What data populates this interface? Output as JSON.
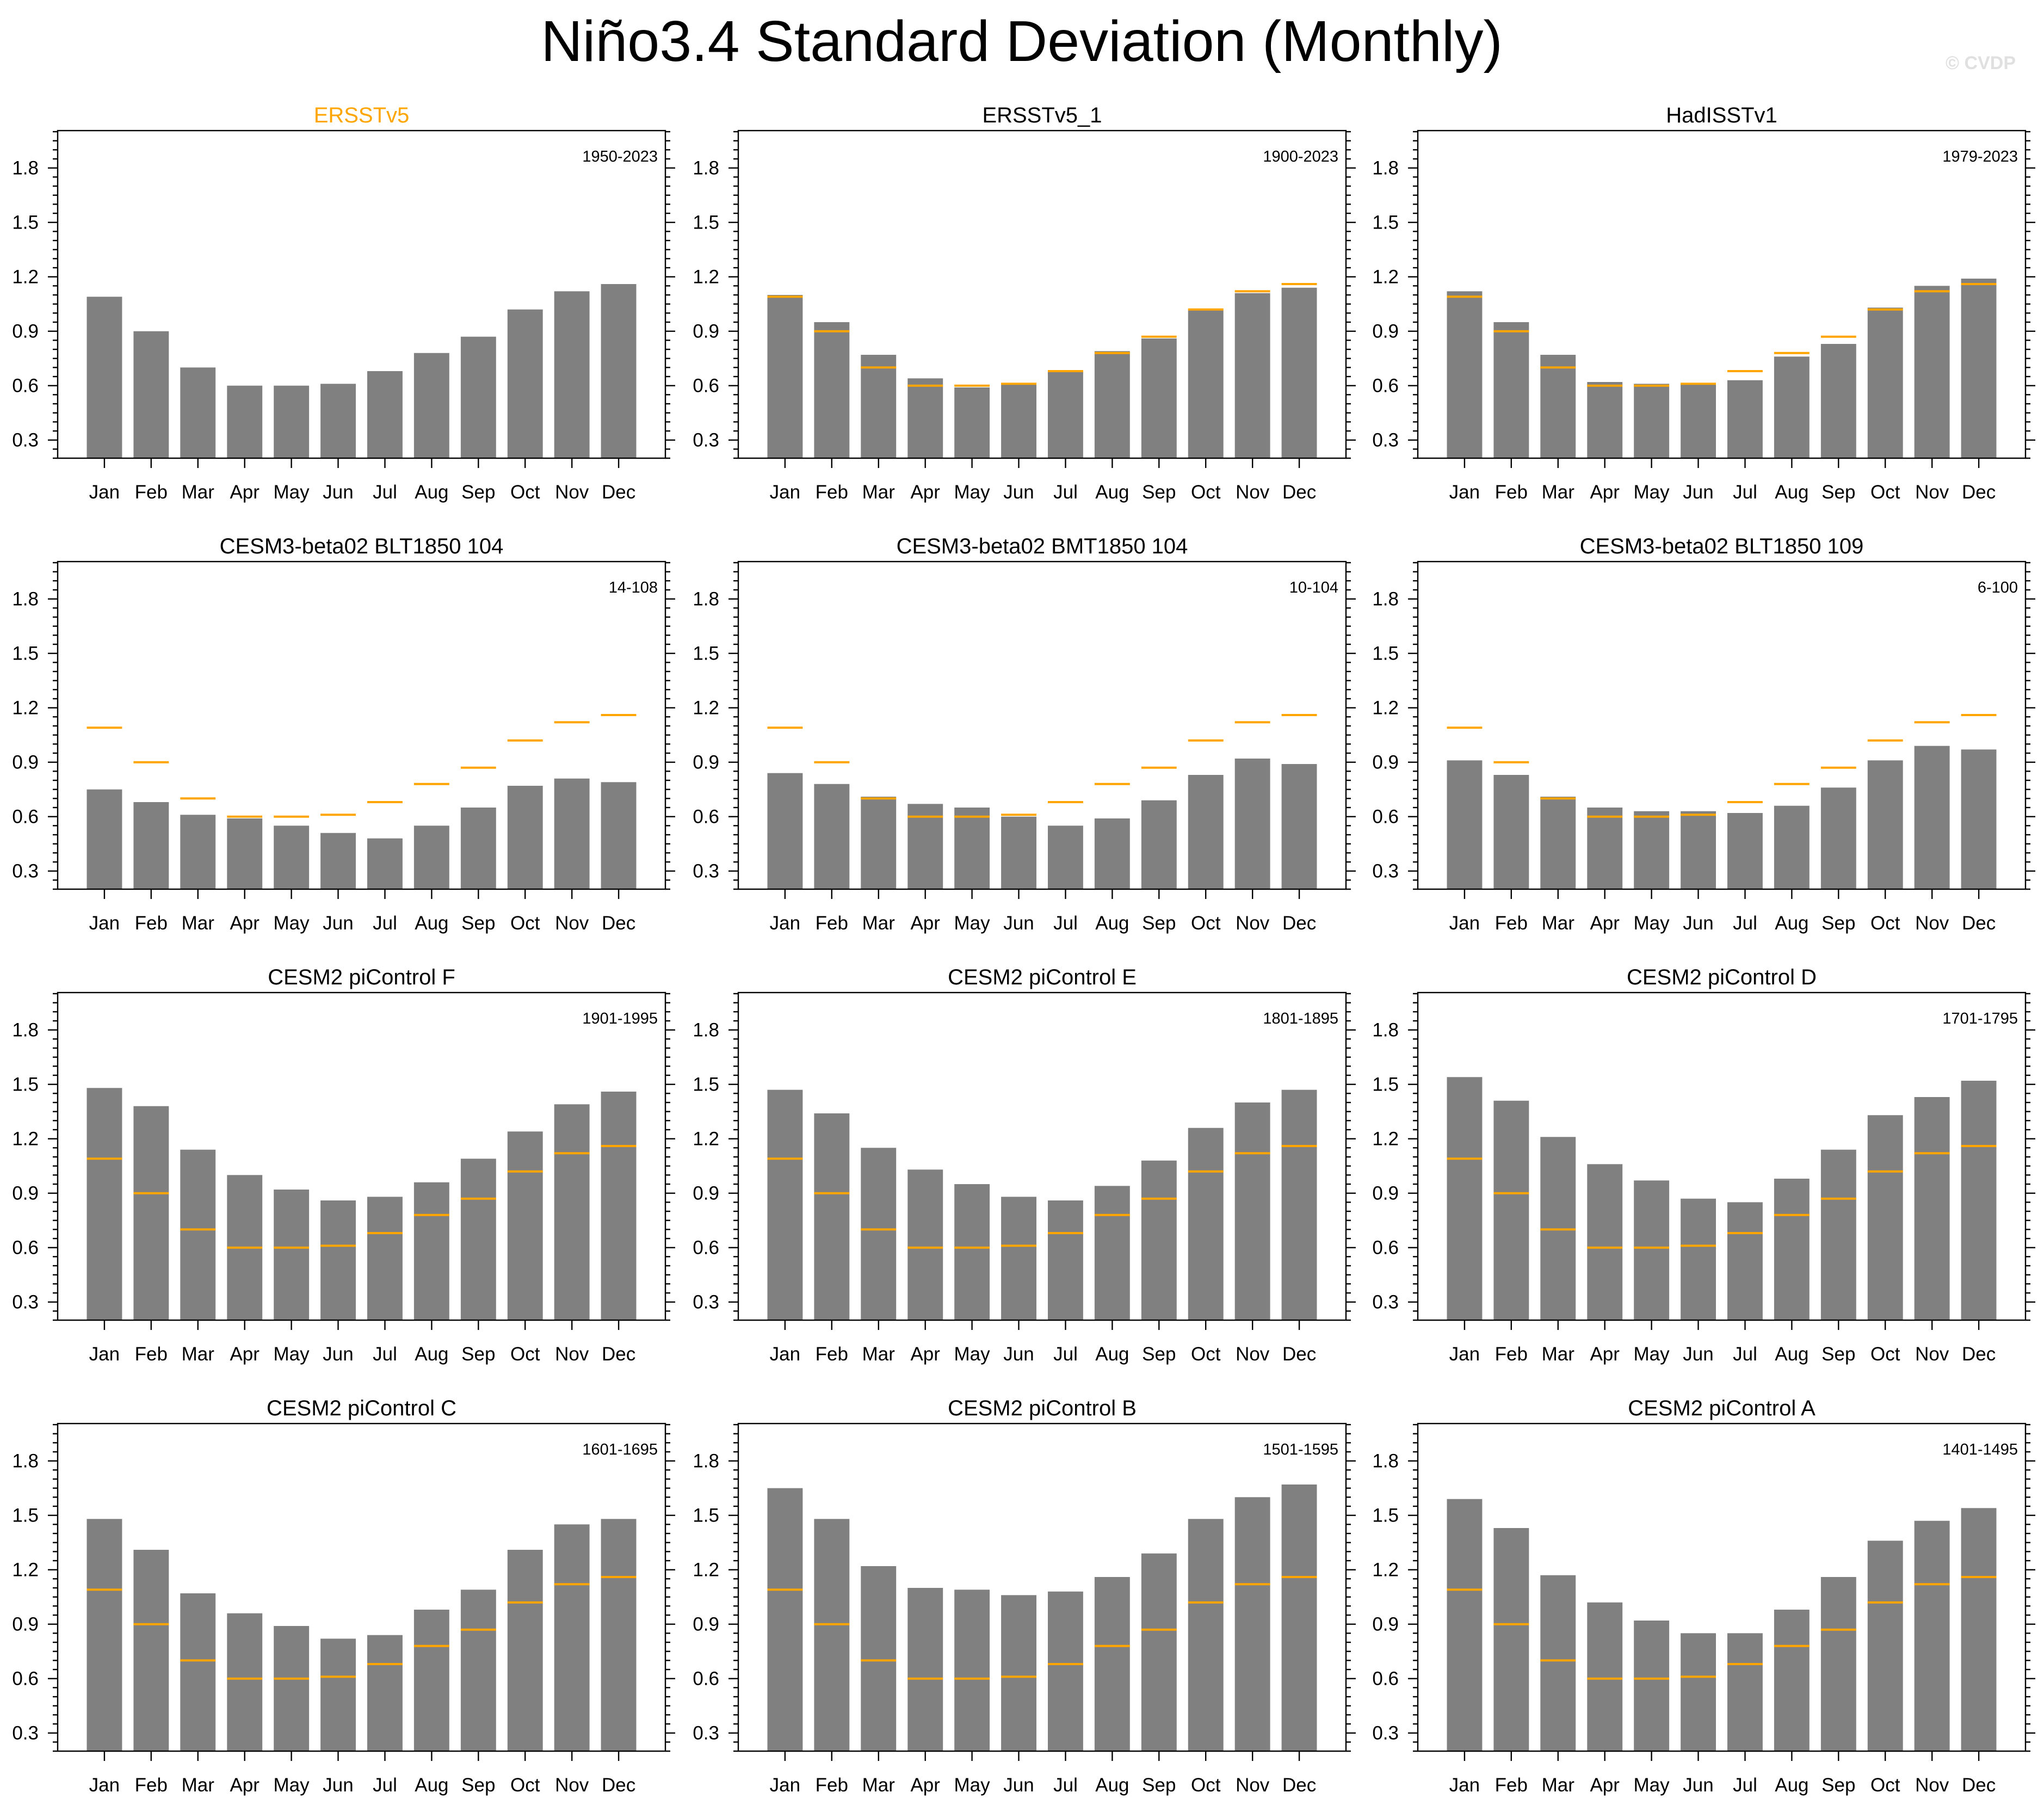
{
  "title": "Niño3.4 Standard Deviation (Monthly)",
  "watermark": "© CVDP",
  "colors": {
    "bar": "#808080",
    "reference": "#ffa500",
    "reference_title": "#ffa500"
  },
  "chart_data": [
    {
      "type": "bar",
      "title": "ERSSTv5",
      "period": "1950-2023",
      "highlight_title": true,
      "categories": [
        "Jan",
        "Feb",
        "Mar",
        "Apr",
        "May",
        "Jun",
        "Jul",
        "Aug",
        "Sep",
        "Oct",
        "Nov",
        "Dec"
      ],
      "values": [
        1.09,
        0.9,
        0.7,
        0.6,
        0.6,
        0.61,
        0.68,
        0.78,
        0.87,
        1.02,
        1.12,
        1.16
      ],
      "reference": null,
      "ylim": [
        0.2,
        2.0
      ],
      "yticks": [
        "0.3",
        "0.6",
        "0.9",
        "1.2",
        "1.5",
        "1.8"
      ],
      "xlabel": "",
      "ylabel": ""
    },
    {
      "type": "bar",
      "title": "ERSSTv5_1",
      "period": "1900-2023",
      "highlight_title": false,
      "categories": [
        "Jan",
        "Feb",
        "Mar",
        "Apr",
        "May",
        "Jun",
        "Jul",
        "Aug",
        "Sep",
        "Oct",
        "Nov",
        "Dec"
      ],
      "values": [
        1.1,
        0.95,
        0.77,
        0.64,
        0.59,
        0.61,
        0.68,
        0.79,
        0.86,
        1.02,
        1.11,
        1.14
      ],
      "reference": [
        1.09,
        0.9,
        0.7,
        0.6,
        0.6,
        0.61,
        0.68,
        0.78,
        0.87,
        1.02,
        1.12,
        1.16
      ],
      "ylim": [
        0.2,
        2.0
      ],
      "yticks": [
        "0.3",
        "0.6",
        "0.9",
        "1.2",
        "1.5",
        "1.8"
      ],
      "xlabel": "",
      "ylabel": ""
    },
    {
      "type": "bar",
      "title": "HadISSTv1",
      "period": "1979-2023",
      "highlight_title": false,
      "categories": [
        "Jan",
        "Feb",
        "Mar",
        "Apr",
        "May",
        "Jun",
        "Jul",
        "Aug",
        "Sep",
        "Oct",
        "Nov",
        "Dec"
      ],
      "values": [
        1.12,
        0.95,
        0.77,
        0.62,
        0.61,
        0.61,
        0.63,
        0.76,
        0.83,
        1.03,
        1.15,
        1.19
      ],
      "reference": [
        1.09,
        0.9,
        0.7,
        0.6,
        0.6,
        0.61,
        0.68,
        0.78,
        0.87,
        1.02,
        1.12,
        1.16
      ],
      "ylim": [
        0.2,
        2.0
      ],
      "yticks": [
        "0.3",
        "0.6",
        "0.9",
        "1.2",
        "1.5",
        "1.8"
      ],
      "xlabel": "",
      "ylabel": ""
    },
    {
      "type": "bar",
      "title": "CESM3-beta02 BLT1850 104",
      "period": "14-108",
      "highlight_title": false,
      "categories": [
        "Jan",
        "Feb",
        "Mar",
        "Apr",
        "May",
        "Jun",
        "Jul",
        "Aug",
        "Sep",
        "Oct",
        "Nov",
        "Dec"
      ],
      "values": [
        0.75,
        0.68,
        0.61,
        0.59,
        0.55,
        0.51,
        0.48,
        0.55,
        0.65,
        0.77,
        0.81,
        0.79
      ],
      "reference": [
        1.09,
        0.9,
        0.7,
        0.6,
        0.6,
        0.61,
        0.68,
        0.78,
        0.87,
        1.02,
        1.12,
        1.16
      ],
      "ylim": [
        0.2,
        2.0
      ],
      "yticks": [
        "0.3",
        "0.6",
        "0.9",
        "1.2",
        "1.5",
        "1.8"
      ],
      "xlabel": "",
      "ylabel": ""
    },
    {
      "type": "bar",
      "title": "CESM3-beta02 BMT1850 104",
      "period": "10-104",
      "highlight_title": false,
      "categories": [
        "Jan",
        "Feb",
        "Mar",
        "Apr",
        "May",
        "Jun",
        "Jul",
        "Aug",
        "Sep",
        "Oct",
        "Nov",
        "Dec"
      ],
      "values": [
        0.84,
        0.78,
        0.71,
        0.67,
        0.65,
        0.6,
        0.55,
        0.59,
        0.69,
        0.83,
        0.92,
        0.89
      ],
      "reference": [
        1.09,
        0.9,
        0.7,
        0.6,
        0.6,
        0.61,
        0.68,
        0.78,
        0.87,
        1.02,
        1.12,
        1.16
      ],
      "ylim": [
        0.2,
        2.0
      ],
      "yticks": [
        "0.3",
        "0.6",
        "0.9",
        "1.2",
        "1.5",
        "1.8"
      ],
      "xlabel": "",
      "ylabel": ""
    },
    {
      "type": "bar",
      "title": "CESM3-beta02 BLT1850 109",
      "period": "6-100",
      "highlight_title": false,
      "categories": [
        "Jan",
        "Feb",
        "Mar",
        "Apr",
        "May",
        "Jun",
        "Jul",
        "Aug",
        "Sep",
        "Oct",
        "Nov",
        "Dec"
      ],
      "values": [
        0.91,
        0.83,
        0.71,
        0.65,
        0.63,
        0.63,
        0.62,
        0.66,
        0.76,
        0.91,
        0.99,
        0.97
      ],
      "reference": [
        1.09,
        0.9,
        0.7,
        0.6,
        0.6,
        0.61,
        0.68,
        0.78,
        0.87,
        1.02,
        1.12,
        1.16
      ],
      "ylim": [
        0.2,
        2.0
      ],
      "yticks": [
        "0.3",
        "0.6",
        "0.9",
        "1.2",
        "1.5",
        "1.8"
      ],
      "xlabel": "",
      "ylabel": ""
    },
    {
      "type": "bar",
      "title": "CESM2 piControl F",
      "period": "1901-1995",
      "highlight_title": false,
      "categories": [
        "Jan",
        "Feb",
        "Mar",
        "Apr",
        "May",
        "Jun",
        "Jul",
        "Aug",
        "Sep",
        "Oct",
        "Nov",
        "Dec"
      ],
      "values": [
        1.48,
        1.38,
        1.14,
        1.0,
        0.92,
        0.86,
        0.88,
        0.96,
        1.09,
        1.24,
        1.39,
        1.46
      ],
      "reference": [
        1.09,
        0.9,
        0.7,
        0.6,
        0.6,
        0.61,
        0.68,
        0.78,
        0.87,
        1.02,
        1.12,
        1.16
      ],
      "ylim": [
        0.2,
        2.0
      ],
      "yticks": [
        "0.3",
        "0.6",
        "0.9",
        "1.2",
        "1.5",
        "1.8"
      ],
      "xlabel": "",
      "ylabel": ""
    },
    {
      "type": "bar",
      "title": "CESM2 piControl E",
      "period": "1801-1895",
      "highlight_title": false,
      "categories": [
        "Jan",
        "Feb",
        "Mar",
        "Apr",
        "May",
        "Jun",
        "Jul",
        "Aug",
        "Sep",
        "Oct",
        "Nov",
        "Dec"
      ],
      "values": [
        1.47,
        1.34,
        1.15,
        1.03,
        0.95,
        0.88,
        0.86,
        0.94,
        1.08,
        1.26,
        1.4,
        1.47
      ],
      "reference": [
        1.09,
        0.9,
        0.7,
        0.6,
        0.6,
        0.61,
        0.68,
        0.78,
        0.87,
        1.02,
        1.12,
        1.16
      ],
      "ylim": [
        0.2,
        2.0
      ],
      "yticks": [
        "0.3",
        "0.6",
        "0.9",
        "1.2",
        "1.5",
        "1.8"
      ],
      "xlabel": "",
      "ylabel": ""
    },
    {
      "type": "bar",
      "title": "CESM2 piControl D",
      "period": "1701-1795",
      "highlight_title": false,
      "categories": [
        "Jan",
        "Feb",
        "Mar",
        "Apr",
        "May",
        "Jun",
        "Jul",
        "Aug",
        "Sep",
        "Oct",
        "Nov",
        "Dec"
      ],
      "values": [
        1.54,
        1.41,
        1.21,
        1.06,
        0.97,
        0.87,
        0.85,
        0.98,
        1.14,
        1.33,
        1.43,
        1.52
      ],
      "reference": [
        1.09,
        0.9,
        0.7,
        0.6,
        0.6,
        0.61,
        0.68,
        0.78,
        0.87,
        1.02,
        1.12,
        1.16
      ],
      "ylim": [
        0.2,
        2.0
      ],
      "yticks": [
        "0.3",
        "0.6",
        "0.9",
        "1.2",
        "1.5",
        "1.8"
      ],
      "xlabel": "",
      "ylabel": ""
    },
    {
      "type": "bar",
      "title": "CESM2 piControl C",
      "period": "1601-1695",
      "highlight_title": false,
      "categories": [
        "Jan",
        "Feb",
        "Mar",
        "Apr",
        "May",
        "Jun",
        "Jul",
        "Aug",
        "Sep",
        "Oct",
        "Nov",
        "Dec"
      ],
      "values": [
        1.48,
        1.31,
        1.07,
        0.96,
        0.89,
        0.82,
        0.84,
        0.98,
        1.09,
        1.31,
        1.45,
        1.48
      ],
      "reference": [
        1.09,
        0.9,
        0.7,
        0.6,
        0.6,
        0.61,
        0.68,
        0.78,
        0.87,
        1.02,
        1.12,
        1.16
      ],
      "ylim": [
        0.2,
        2.0
      ],
      "yticks": [
        "0.3",
        "0.6",
        "0.9",
        "1.2",
        "1.5",
        "1.8"
      ],
      "xlabel": "",
      "ylabel": ""
    },
    {
      "type": "bar",
      "title": "CESM2 piControl B",
      "period": "1501-1595",
      "highlight_title": false,
      "categories": [
        "Jan",
        "Feb",
        "Mar",
        "Apr",
        "May",
        "Jun",
        "Jul",
        "Aug",
        "Sep",
        "Oct",
        "Nov",
        "Dec"
      ],
      "values": [
        1.65,
        1.48,
        1.22,
        1.1,
        1.09,
        1.06,
        1.08,
        1.16,
        1.29,
        1.48,
        1.6,
        1.67
      ],
      "reference": [
        1.09,
        0.9,
        0.7,
        0.6,
        0.6,
        0.61,
        0.68,
        0.78,
        0.87,
        1.02,
        1.12,
        1.16
      ],
      "ylim": [
        0.2,
        2.0
      ],
      "yticks": [
        "0.3",
        "0.6",
        "0.9",
        "1.2",
        "1.5",
        "1.8"
      ],
      "xlabel": "",
      "ylabel": ""
    },
    {
      "type": "bar",
      "title": "CESM2 piControl A",
      "period": "1401-1495",
      "highlight_title": false,
      "categories": [
        "Jan",
        "Feb",
        "Mar",
        "Apr",
        "May",
        "Jun",
        "Jul",
        "Aug",
        "Sep",
        "Oct",
        "Nov",
        "Dec"
      ],
      "values": [
        1.59,
        1.43,
        1.17,
        1.02,
        0.92,
        0.85,
        0.85,
        0.98,
        1.16,
        1.36,
        1.47,
        1.54
      ],
      "reference": [
        1.09,
        0.9,
        0.7,
        0.6,
        0.6,
        0.61,
        0.68,
        0.78,
        0.87,
        1.02,
        1.12,
        1.16
      ],
      "ylim": [
        0.2,
        2.0
      ],
      "yticks": [
        "0.3",
        "0.6",
        "0.9",
        "1.2",
        "1.5",
        "1.8"
      ],
      "xlabel": "",
      "ylabel": ""
    }
  ]
}
